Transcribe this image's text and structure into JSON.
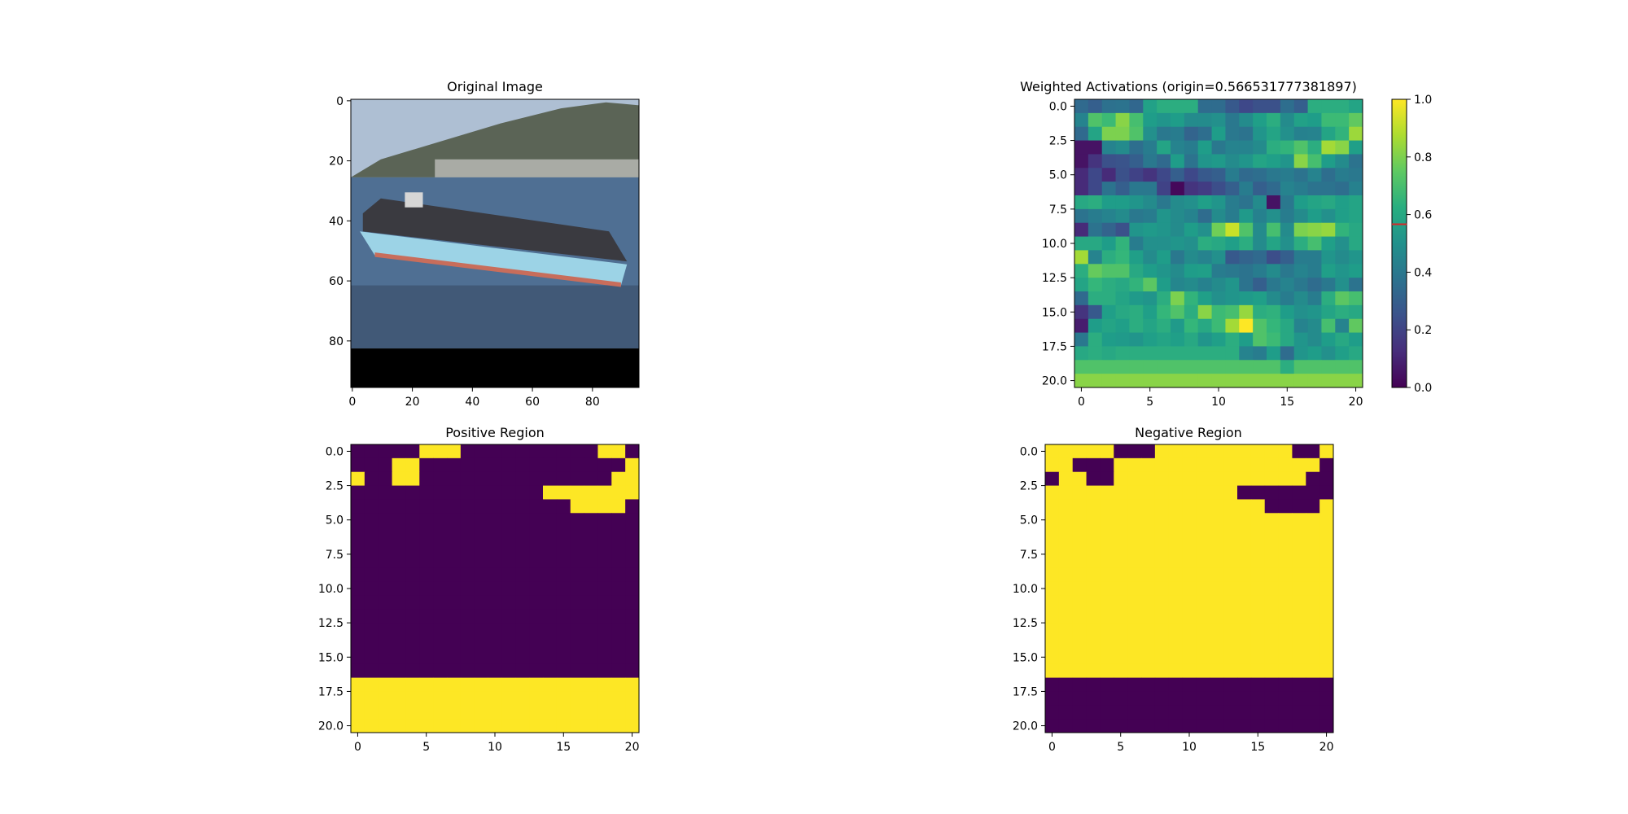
{
  "chart_data": [
    {
      "id": "original",
      "type": "image",
      "title": "Original Image",
      "xticks": [
        0,
        20,
        40,
        60,
        80
      ],
      "yticks": [
        0,
        20,
        40,
        60,
        80
      ],
      "xlim": [
        -0.5,
        95.5
      ],
      "ylim": [
        95.5,
        -0.5
      ],
      "image_content": "photo of a container ship on water with mountains, black band at bottom rows 83-95"
    },
    {
      "id": "weighted",
      "type": "heatmap",
      "title": "Weighted Activations (origin=0.566531777381897)",
      "xticks": [
        0,
        5,
        10,
        15,
        20
      ],
      "yticks": [
        "0.0",
        "2.5",
        "5.0",
        "7.5",
        "10.0",
        "12.5",
        "15.0",
        "17.5",
        "20.0"
      ],
      "xlim": [
        -0.5,
        20.5
      ],
      "ylim": [
        20.5,
        -0.5
      ],
      "colormap": "viridis",
      "colorbar": {
        "ticks": [
          "0.0",
          "0.2",
          "0.4",
          "0.6",
          "0.8",
          "1.0"
        ],
        "range": [
          0,
          1
        ],
        "marker_value": 0.566531777381897,
        "marker_color": "#d62728"
      },
      "values": [
        [
          0.34,
          0.3,
          0.37,
          0.38,
          0.33,
          0.57,
          0.62,
          0.62,
          0.62,
          0.35,
          0.35,
          0.28,
          0.22,
          0.25,
          0.25,
          0.36,
          0.3,
          0.62,
          0.62,
          0.62,
          0.58
        ],
        [
          0.45,
          0.72,
          0.68,
          0.82,
          0.7,
          0.55,
          0.52,
          0.55,
          0.48,
          0.48,
          0.5,
          0.4,
          0.48,
          0.56,
          0.62,
          0.48,
          0.57,
          0.55,
          0.68,
          0.68,
          0.75
        ],
        [
          0.34,
          0.58,
          0.8,
          0.8,
          0.72,
          0.5,
          0.4,
          0.42,
          0.32,
          0.36,
          0.55,
          0.4,
          0.38,
          0.52,
          0.58,
          0.5,
          0.44,
          0.45,
          0.58,
          0.65,
          0.85
        ],
        [
          0.05,
          0.05,
          0.45,
          0.48,
          0.36,
          0.42,
          0.58,
          0.45,
          0.42,
          0.55,
          0.4,
          0.45,
          0.45,
          0.48,
          0.62,
          0.65,
          0.72,
          0.62,
          0.86,
          0.82,
          0.56
        ],
        [
          0.05,
          0.15,
          0.25,
          0.26,
          0.3,
          0.4,
          0.34,
          0.55,
          0.38,
          0.52,
          0.54,
          0.48,
          0.52,
          0.58,
          0.56,
          0.52,
          0.82,
          0.7,
          0.55,
          0.48,
          0.38
        ],
        [
          0.12,
          0.22,
          0.12,
          0.25,
          0.2,
          0.15,
          0.22,
          0.3,
          0.22,
          0.28,
          0.3,
          0.42,
          0.34,
          0.36,
          0.4,
          0.42,
          0.38,
          0.45,
          0.36,
          0.42,
          0.4
        ],
        [
          0.12,
          0.22,
          0.38,
          0.3,
          0.4,
          0.4,
          0.2,
          0.02,
          0.15,
          0.18,
          0.24,
          0.3,
          0.42,
          0.3,
          0.34,
          0.45,
          0.42,
          0.38,
          0.38,
          0.36,
          0.44
        ],
        [
          0.6,
          0.62,
          0.55,
          0.55,
          0.52,
          0.48,
          0.4,
          0.48,
          0.5,
          0.56,
          0.52,
          0.42,
          0.38,
          0.48,
          0.05,
          0.4,
          0.55,
          0.58,
          0.6,
          0.56,
          0.58
        ],
        [
          0.38,
          0.42,
          0.45,
          0.48,
          0.4,
          0.42,
          0.52,
          0.48,
          0.45,
          0.35,
          0.48,
          0.42,
          0.54,
          0.44,
          0.5,
          0.42,
          0.48,
          0.55,
          0.5,
          0.56,
          0.58
        ],
        [
          0.12,
          0.38,
          0.32,
          0.25,
          0.52,
          0.54,
          0.52,
          0.48,
          0.55,
          0.5,
          0.78,
          0.92,
          0.72,
          0.48,
          0.7,
          0.48,
          0.8,
          0.82,
          0.84,
          0.65,
          0.6
        ],
        [
          0.6,
          0.6,
          0.55,
          0.65,
          0.42,
          0.5,
          0.5,
          0.52,
          0.5,
          0.62,
          0.6,
          0.56,
          0.62,
          0.48,
          0.58,
          0.5,
          0.62,
          0.7,
          0.56,
          0.5,
          0.6
        ],
        [
          0.86,
          0.45,
          0.62,
          0.66,
          0.56,
          0.48,
          0.55,
          0.4,
          0.48,
          0.45,
          0.5,
          0.28,
          0.32,
          0.34,
          0.24,
          0.3,
          0.42,
          0.42,
          0.52,
          0.48,
          0.52
        ],
        [
          0.62,
          0.76,
          0.72,
          0.72,
          0.6,
          0.55,
          0.52,
          0.48,
          0.55,
          0.56,
          0.42,
          0.4,
          0.38,
          0.42,
          0.48,
          0.4,
          0.45,
          0.42,
          0.56,
          0.52,
          0.55
        ],
        [
          0.58,
          0.66,
          0.62,
          0.6,
          0.65,
          0.74,
          0.55,
          0.46,
          0.48,
          0.44,
          0.48,
          0.52,
          0.38,
          0.3,
          0.4,
          0.45,
          0.4,
          0.35,
          0.4,
          0.5,
          0.38
        ],
        [
          0.34,
          0.62,
          0.62,
          0.58,
          0.54,
          0.52,
          0.62,
          0.8,
          0.65,
          0.56,
          0.5,
          0.52,
          0.54,
          0.56,
          0.48,
          0.42,
          0.48,
          0.42,
          0.62,
          0.74,
          0.7
        ],
        [
          0.15,
          0.28,
          0.56,
          0.6,
          0.62,
          0.56,
          0.66,
          0.72,
          0.62,
          0.82,
          0.68,
          0.7,
          0.84,
          0.62,
          0.64,
          0.55,
          0.5,
          0.52,
          0.58,
          0.62,
          0.6
        ],
        [
          0.08,
          0.55,
          0.58,
          0.56,
          0.62,
          0.58,
          0.62,
          0.54,
          0.66,
          0.6,
          0.68,
          0.86,
          1.0,
          0.72,
          0.66,
          0.6,
          0.45,
          0.48,
          0.7,
          0.45,
          0.75
        ],
        [
          0.4,
          0.62,
          0.55,
          0.54,
          0.52,
          0.56,
          0.58,
          0.56,
          0.6,
          0.52,
          0.56,
          0.62,
          0.55,
          0.72,
          0.68,
          0.6,
          0.52,
          0.48,
          0.55,
          0.6,
          0.55
        ],
        [
          0.6,
          0.62,
          0.6,
          0.62,
          0.62,
          0.62,
          0.62,
          0.62,
          0.62,
          0.62,
          0.62,
          0.62,
          0.45,
          0.42,
          0.55,
          0.35,
          0.52,
          0.55,
          0.5,
          0.56,
          0.6
        ],
        [
          0.72,
          0.72,
          0.72,
          0.72,
          0.72,
          0.72,
          0.72,
          0.72,
          0.72,
          0.72,
          0.72,
          0.72,
          0.72,
          0.72,
          0.72,
          0.62,
          0.72,
          0.72,
          0.72,
          0.72,
          0.72
        ],
        [
          0.82,
          0.82,
          0.82,
          0.82,
          0.82,
          0.82,
          0.82,
          0.82,
          0.82,
          0.82,
          0.82,
          0.82,
          0.82,
          0.82,
          0.82,
          0.82,
          0.82,
          0.82,
          0.82,
          0.82,
          0.82
        ]
      ]
    },
    {
      "id": "positive",
      "type": "heatmap",
      "title": "Positive Region",
      "xticks": [
        0,
        5,
        10,
        15,
        20
      ],
      "yticks": [
        "0.0",
        "2.5",
        "5.0",
        "7.5",
        "10.0",
        "12.5",
        "15.0",
        "17.5",
        "20.0"
      ],
      "xlim": [
        -0.5,
        20.5
      ],
      "ylim": [
        20.5,
        -0.5
      ],
      "colormap": "viridis-binary",
      "rows": [
        "000001110000000000110",
        "000110000000000000001",
        "100110000000000000011",
        "000000000000001111111",
        "000000000000000011110",
        "000000000000000000000",
        "000000000000000000000",
        "000000000000000000000",
        "000000000000000000000",
        "000000000000000000000",
        "000000000000000000000",
        "000000000000000000000",
        "000000000000000000000",
        "000000000000000000000",
        "000000000000000000000",
        "000000000000000000000",
        "000000000000000000000",
        "111111111111111111111",
        "111111111111111111111",
        "111111111111111111111",
        "111111111111111111111"
      ]
    },
    {
      "id": "negative",
      "type": "heatmap",
      "title": "Negative Region",
      "xticks": [
        0,
        5,
        10,
        15,
        20
      ],
      "yticks": [
        "0.0",
        "2.5",
        "5.0",
        "7.5",
        "10.0",
        "12.5",
        "15.0",
        "17.5",
        "20.0"
      ],
      "xlim": [
        -0.5,
        20.5
      ],
      "ylim": [
        20.5,
        -0.5
      ],
      "colormap": "viridis-binary",
      "rows": [
        "111110001111111111001",
        "110001111111111111110",
        "011001111111111111100",
        "111111111111110000000",
        "111111111111111100001",
        "111111111111111111111",
        "111111111111111111111",
        "111111111111111111111",
        "111111111111111111111",
        "111111111111111111111",
        "111111111111111111111",
        "111111111111111111111",
        "111111111111111111111",
        "111111111111111111111",
        "111111111111111111111",
        "111111111111111111111",
        "111111111111111111111",
        "000000000000000000000",
        "000000000000000000000",
        "000000000000000000000",
        "000000000000000000000"
      ]
    }
  ]
}
